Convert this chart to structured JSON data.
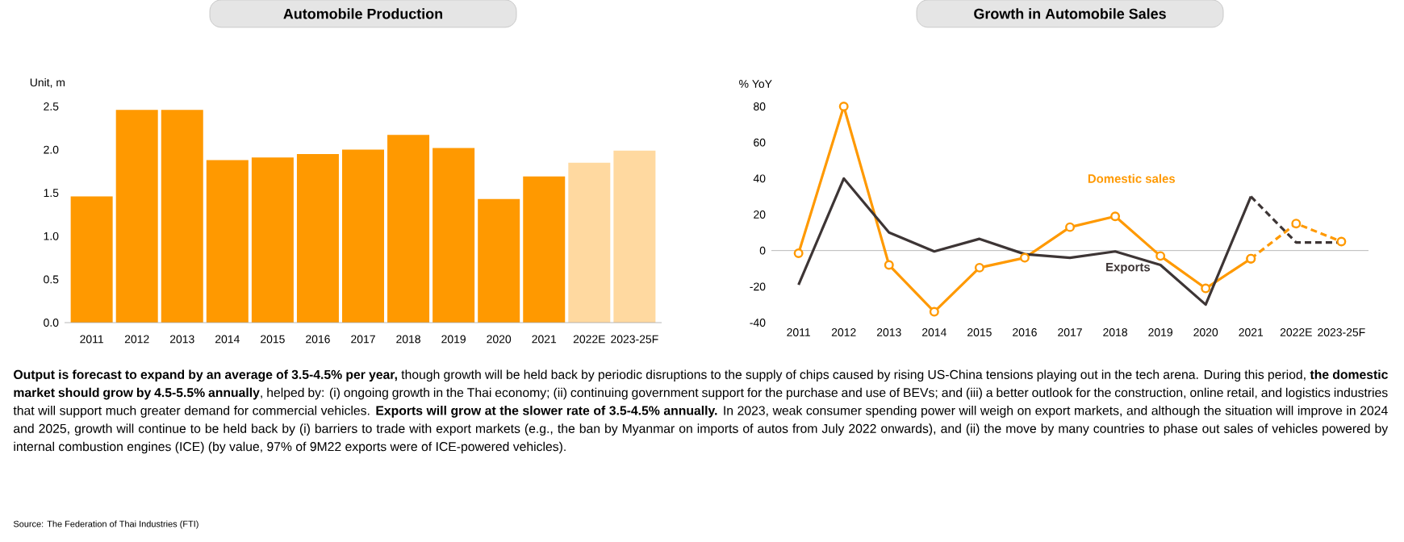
{
  "chart_data": [
    {
      "type": "bar",
      "title": "Automobile Production",
      "ylabel": "Unit, m",
      "categories": [
        "2011",
        "2012",
        "2013",
        "2014",
        "2015",
        "2016",
        "2017",
        "2018",
        "2019",
        "2020",
        "2021",
        "2022E",
        "2023-25F"
      ],
      "values": [
        1.46,
        2.46,
        2.46,
        1.88,
        1.91,
        1.95,
        2.0,
        2.17,
        2.02,
        1.43,
        1.69,
        1.85,
        1.99
      ],
      "colors": [
        "#ff9900",
        "#ff9900",
        "#ff9900",
        "#ff9900",
        "#ff9900",
        "#ff9900",
        "#ff9900",
        "#ff9900",
        "#ff9900",
        "#ff9900",
        "#ff9900",
        "#ffd9a0",
        "#ffd9a0"
      ],
      "ylim": [
        0,
        2.5
      ],
      "yticks": [
        {
          "value": 0,
          "label": "0.0"
        },
        0.5,
        {
          "value": 1,
          "label": "1.0"
        },
        1.5,
        {
          "value": 2,
          "label": "2.0"
        },
        2.5
      ],
      "annotations": [
        "**Output is forecast to expand by an average of 3.5-4.5% per year,** though growth will be held back by periodic disruptions to the supply of chips caused by rising US-China tensions playing out in the tech arena. During this period, **the domestic market should grow by 4.5-5.5% annually**, helped by: (i) ongoing growth in the Thai economy; (ii) continuing government support for the purchase and use of BEVs; and (iii) a better outlook for the construction, online retail, and logistics industries that will support much greater demand for commercial vehicles. **Exports will grow at the slower rate of 3.5-4.5% annually.** In 2023, weak consumer spending power will weigh on export markets, and although the situation will improve in 2024 and 2025, growth will continue to be held back by (i) barriers to trade with export markets (e.g., the ban by Myanmar on imports of autos from July 2022 onwards), and (ii) the move by many countries to phase out sales of vehicles powered by internal combustion engines (ICE) (by value, 97% of 9M22 exports were of ICE-powered vehicles).",
        "Source: The Federation of Thai Industries (FTI)"
      ]
    },
    {
      "type": "line",
      "title": "Growth in Automobile Sales",
      "ylabel": "% YoY",
      "categories": [
        "2011",
        "2012",
        "2013",
        "2014",
        "2015",
        "2016",
        "2017",
        "2018",
        "2019",
        "2020",
        "2021",
        "2022E",
        "2023-25F"
      ],
      "series": [
        {
          "name": "Domestic sales",
          "color": "#ff9900",
          "marker": "circle",
          "line_style": "solid",
          "values": [
            -1.5,
            80,
            -8,
            -34,
            -9.5,
            -4,
            13,
            19,
            -3,
            -21,
            -4.5,
            null,
            null
          ]
        },
        {
          "color": "#ff9900",
          "marker": "circle",
          "line_style": "dashed",
          "values": [
            null,
            null,
            null,
            null,
            null,
            null,
            null,
            null,
            null,
            null,
            -4.5,
            15,
            5
          ]
        },
        {
          "name": "Exports",
          "color": "#3d3535",
          "marker": "none",
          "line_style": "solid",
          "values": [
            -19,
            40,
            10,
            -0.5,
            6.5,
            -2,
            -4,
            -0.5,
            -8,
            -30,
            30,
            null,
            null
          ]
        },
        {
          "color": "#3d3535",
          "marker": "none",
          "line_style": "dashed",
          "values": [
            null,
            null,
            null,
            null,
            null,
            null,
            null,
            null,
            null,
            null,
            30,
            4.5,
            4.5
          ]
        }
      ],
      "ylim": [
        -40,
        80
      ],
      "yticks": [
        -40,
        -20,
        0,
        20,
        40,
        60,
        80
      ]
    }
  ]
}
